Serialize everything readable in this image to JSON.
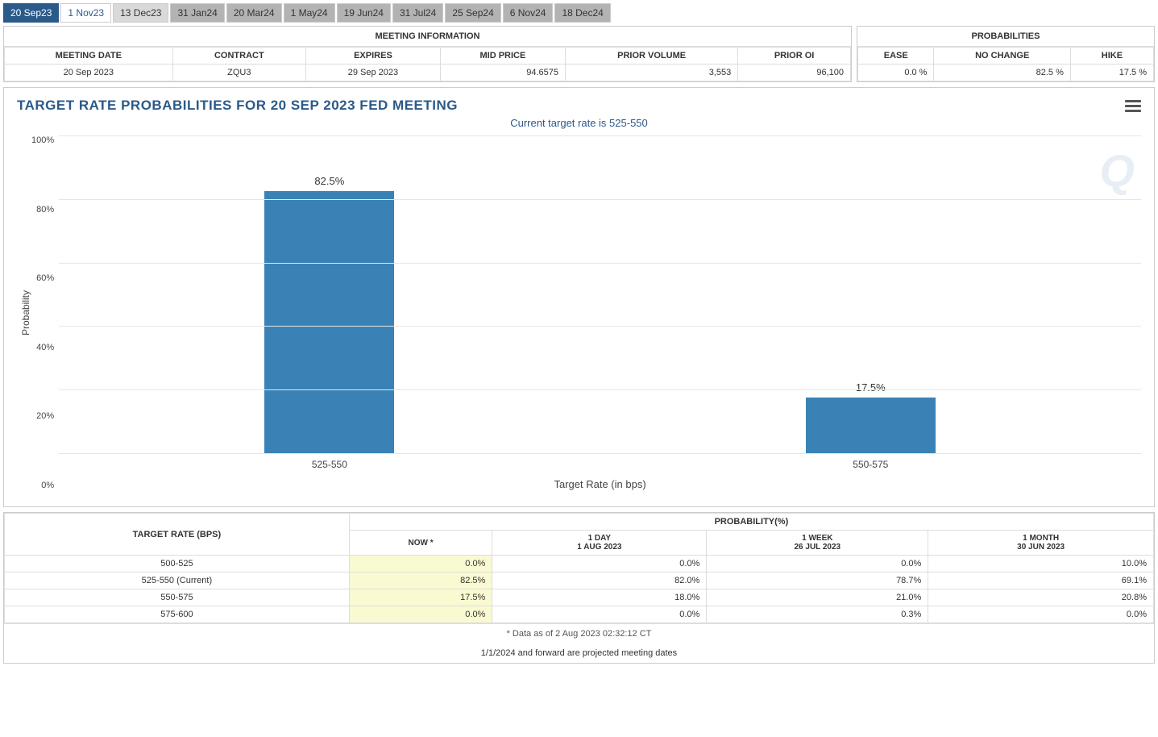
{
  "tabs": [
    {
      "label": "20 Sep23",
      "style": "active"
    },
    {
      "label": "1 Nov23",
      "style": "white"
    },
    {
      "label": "13 Dec23",
      "style": "lightgray"
    },
    {
      "label": "31 Jan24",
      "style": "gray"
    },
    {
      "label": "20 Mar24",
      "style": "gray"
    },
    {
      "label": "1 May24",
      "style": "gray"
    },
    {
      "label": "19 Jun24",
      "style": "gray"
    },
    {
      "label": "31 Jul24",
      "style": "gray"
    },
    {
      "label": "25 Sep24",
      "style": "gray"
    },
    {
      "label": "6 Nov24",
      "style": "gray"
    },
    {
      "label": "18 Dec24",
      "style": "gray"
    }
  ],
  "meeting_info": {
    "title": "MEETING INFORMATION",
    "columns": [
      "MEETING DATE",
      "CONTRACT",
      "EXPIRES",
      "MID PRICE",
      "PRIOR VOLUME",
      "PRIOR OI"
    ],
    "row": {
      "meeting_date": "20 Sep 2023",
      "contract": "ZQU3",
      "expires": "29 Sep 2023",
      "mid_price": "94.6575",
      "prior_volume": "3,553",
      "prior_oi": "96,100"
    }
  },
  "probabilities_panel": {
    "title": "PROBABILITIES",
    "columns": [
      "EASE",
      "NO CHANGE",
      "HIKE"
    ],
    "row": {
      "ease": "0.0 %",
      "no_change": "82.5 %",
      "hike": "17.5 %"
    }
  },
  "chart": {
    "title": "TARGET RATE PROBABILITIES FOR 20 SEP 2023 FED MEETING",
    "subtitle": "Current target rate is 525-550",
    "type": "bar",
    "y_label": "Probability",
    "x_label": "Target Rate (in bps)",
    "y_ticks": [
      "100%",
      "80%",
      "60%",
      "40%",
      "20%",
      "0%"
    ],
    "y_max": 100,
    "grid_color": "#e6e6e6",
    "bar_color": "#3a82b5",
    "background_color": "#ffffff",
    "watermark": "Q",
    "categories": [
      "525-550",
      "550-575"
    ],
    "values": [
      82.5,
      17.5
    ],
    "value_labels": [
      "82.5%",
      "17.5%"
    ]
  },
  "history": {
    "col1_header": "TARGET RATE (BPS)",
    "col2_header": "PROBABILITY(%)",
    "subheaders": [
      {
        "top": "NOW *",
        "bottom": ""
      },
      {
        "top": "1 DAY",
        "bottom": "1 AUG 2023"
      },
      {
        "top": "1 WEEK",
        "bottom": "26 JUL 2023"
      },
      {
        "top": "1 MONTH",
        "bottom": "30 JUN 2023"
      }
    ],
    "rows": [
      {
        "rate": "500-525",
        "now": "0.0%",
        "d1": "0.0%",
        "w1": "0.0%",
        "m1": "10.0%"
      },
      {
        "rate": "525-550 (Current)",
        "now": "82.5%",
        "d1": "82.0%",
        "w1": "78.7%",
        "m1": "69.1%"
      },
      {
        "rate": "550-575",
        "now": "17.5%",
        "d1": "18.0%",
        "w1": "21.0%",
        "m1": "20.8%"
      },
      {
        "rate": "575-600",
        "now": "0.0%",
        "d1": "0.0%",
        "w1": "0.3%",
        "m1": "0.0%"
      }
    ],
    "footnote": "* Data as of 2 Aug 2023 02:32:12 CT",
    "projection_note": "1/1/2024 and forward are projected meeting dates"
  }
}
